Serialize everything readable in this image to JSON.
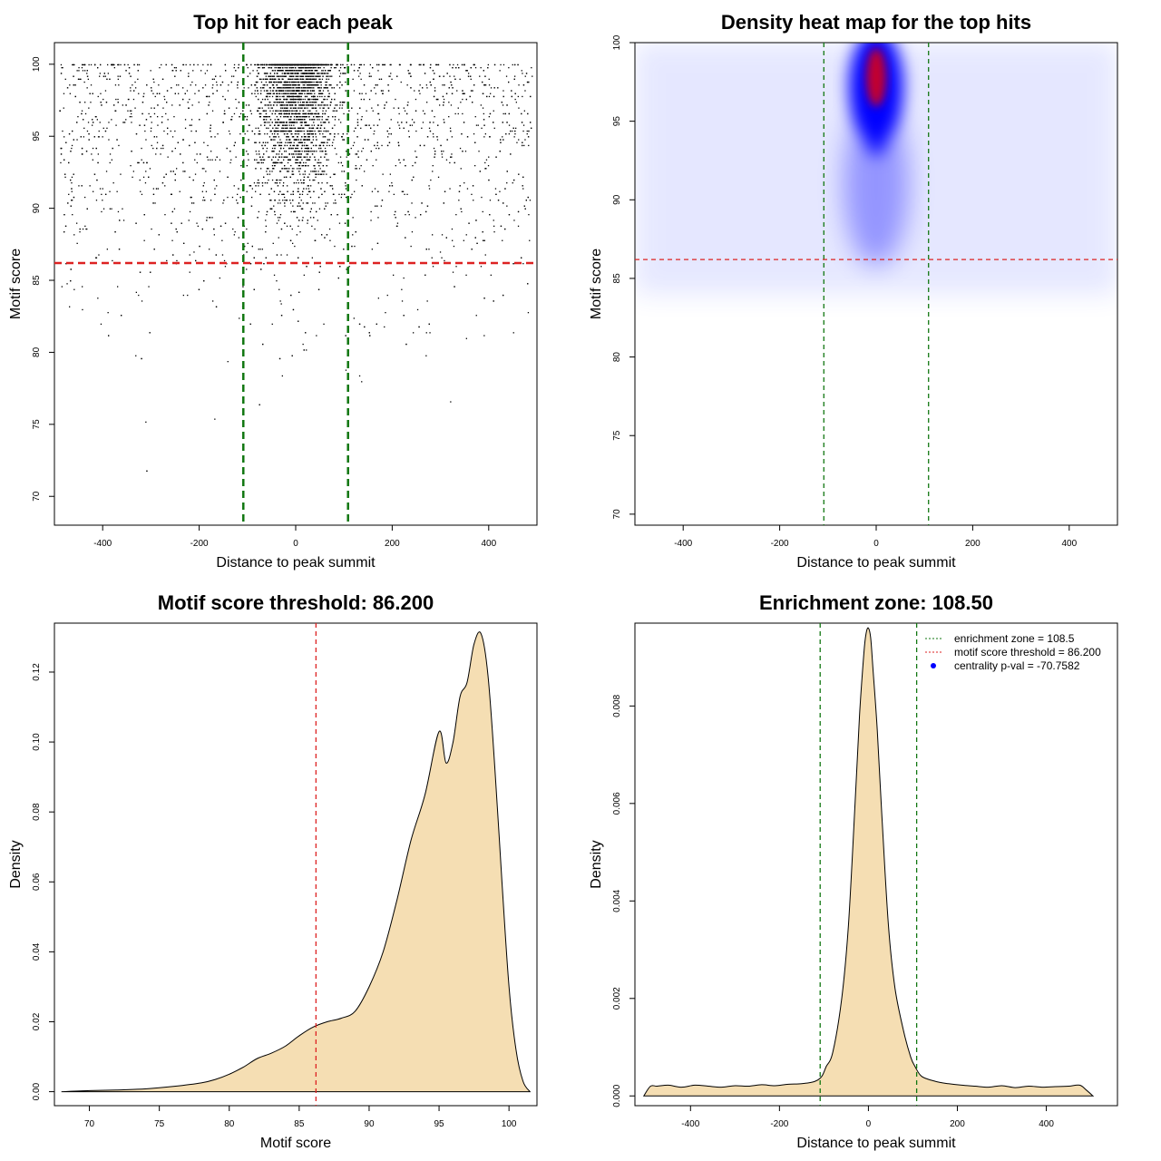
{
  "chart_data": [
    {
      "type": "scatter",
      "title": "Top hit for each peak",
      "xlabel": "Distance to peak summit",
      "ylabel": "Motif score",
      "xlim": [
        -500,
        500
      ],
      "ylim": [
        68,
        101.5
      ],
      "xticks": [
        "-400",
        "-200",
        "0",
        "200",
        "400"
      ],
      "yticks": [
        "70",
        "75",
        "80",
        "85",
        "90",
        "95",
        "100"
      ],
      "hlines": [
        86.2
      ],
      "vlines": [
        -108.5,
        108.5
      ],
      "line_colors": {
        "threshold": "#dd2222",
        "zone": "#117711"
      },
      "point_color": "#000000",
      "generated_points": {
        "count": 5200,
        "x_range": [
          -490,
          490
        ],
        "y_range": [
          69,
          100
        ],
        "central_fraction": 0.55,
        "central_sd": 40,
        "score_mode": 97.5
      }
    },
    {
      "type": "heatmap",
      "title": "Density heat map for the top hits",
      "xlabel": "Distance to peak summit",
      "ylabel": "Motif score",
      "xlim": [
        -500,
        500
      ],
      "ylim": [
        69.3,
        100
      ],
      "xticks": [
        "-400",
        "-200",
        "0",
        "200",
        "400"
      ],
      "yticks": [
        "70",
        "75",
        "80",
        "85",
        "90",
        "95",
        "100"
      ],
      "hlines": [
        86.2
      ],
      "vlines": [
        -108.5,
        108.5
      ],
      "peak": {
        "x": 0,
        "y": 97.8
      },
      "colors": [
        "#ffffff",
        "#0000ff",
        "#ff0000"
      ]
    },
    {
      "type": "area",
      "title": "Motif score threshold: 86.200",
      "xlabel": "Motif score",
      "ylabel": "Density",
      "xlim": [
        67.5,
        102
      ],
      "ylim": [
        -0.004,
        0.134
      ],
      "xticks": [
        "70",
        "75",
        "80",
        "85",
        "90",
        "95",
        "100"
      ],
      "yticks": [
        "0.00",
        "0.02",
        "0.04",
        "0.06",
        "0.08",
        "0.10",
        "0.12"
      ],
      "vlines": [
        86.2
      ],
      "fill_color": "#f5deb3",
      "x": [
        68,
        70,
        72,
        74,
        76,
        78,
        79,
        80,
        81,
        82,
        83,
        84,
        85,
        86,
        87,
        88,
        89,
        90,
        91,
        92,
        93,
        94,
        95,
        95.5,
        96,
        96.5,
        97,
        97.5,
        98,
        98.5,
        99,
        99.5,
        100,
        100.5,
        101,
        101.5
      ],
      "y": [
        0.0,
        0.0003,
        0.0005,
        0.0008,
        0.0015,
        0.0025,
        0.0035,
        0.005,
        0.007,
        0.0095,
        0.011,
        0.013,
        0.016,
        0.0185,
        0.02,
        0.021,
        0.023,
        0.03,
        0.04,
        0.055,
        0.072,
        0.085,
        0.103,
        0.094,
        0.1,
        0.113,
        0.117,
        0.128,
        0.131,
        0.119,
        0.092,
        0.06,
        0.03,
        0.012,
        0.003,
        0.0
      ]
    },
    {
      "type": "area",
      "title": "Enrichment zone: 108.50",
      "xlabel": "Distance to peak summit",
      "ylabel": "Density",
      "xlim": [
        -525,
        560
      ],
      "ylim": [
        -0.0002,
        0.0097
      ],
      "xticks": [
        "-400",
        "-200",
        "0",
        "200",
        "400"
      ],
      "yticks": [
        "0.000",
        "0.002",
        "0.004",
        "0.006",
        "0.008"
      ],
      "vlines": [
        -108.5,
        108.5
      ],
      "fill_color": "#f5deb3",
      "x": [
        -505,
        -490,
        -475,
        -450,
        -420,
        -390,
        -360,
        -330,
        -300,
        -270,
        -240,
        -210,
        -180,
        -150,
        -120,
        -105,
        -95,
        -80,
        -60,
        -45,
        -30,
        -20,
        -10,
        -5,
        0,
        5,
        10,
        20,
        30,
        45,
        60,
        80,
        95,
        105,
        120,
        150,
        180,
        210,
        240,
        270,
        300,
        330,
        360,
        390,
        420,
        450,
        475,
        490,
        505
      ],
      "y": [
        0.0,
        0.0002,
        0.0002,
        0.00022,
        0.00018,
        0.00022,
        0.0002,
        0.00018,
        0.00021,
        0.0002,
        0.00023,
        0.00021,
        0.00024,
        0.00025,
        0.0003,
        0.0004,
        0.0006,
        0.0009,
        0.002,
        0.0035,
        0.006,
        0.0078,
        0.0091,
        0.0095,
        0.0096,
        0.0094,
        0.0088,
        0.0075,
        0.0058,
        0.0035,
        0.0022,
        0.0013,
        0.0008,
        0.0006,
        0.0004,
        0.0003,
        0.00025,
        0.00022,
        0.0002,
        0.00018,
        0.00021,
        0.00017,
        0.0002,
        0.00018,
        0.00019,
        0.0002,
        0.00022,
        0.00012,
        0.0
      ],
      "legend": {
        "position": "top-right",
        "entries": [
          {
            "label": "enrichment zone = 108.5",
            "color": "#117711",
            "style": "dotted-line"
          },
          {
            "label": "motif score threshold = 86.200",
            "color": "#dd2222",
            "style": "dotted-line"
          },
          {
            "label": "centrality p-val = -70.7582",
            "color": "#0000ff",
            "style": "point"
          }
        ]
      }
    }
  ]
}
